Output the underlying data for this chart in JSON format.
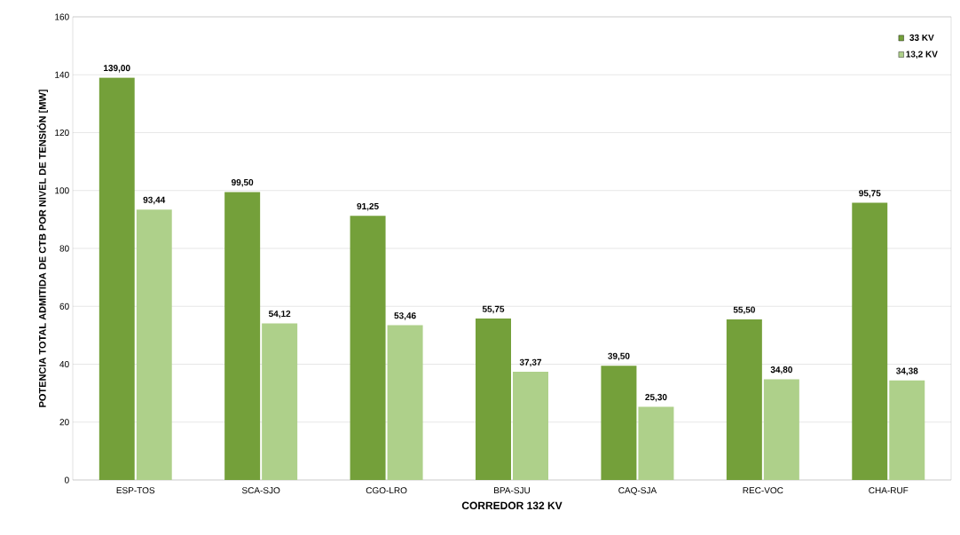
{
  "chart_data": {
    "type": "bar",
    "xlabel": "CORREDOR 132 KV",
    "ylabel": "POTENCIA TOTAL ADMITIDA DE CTB POR NIVEL DE TENSIÓN [MW]",
    "categories": [
      "ESP-TOS",
      "SCA-SJO",
      "CGO-LRO",
      "BPA-SJU",
      "CAQ-SJA",
      "REC-VOC",
      "CHA-RUF"
    ],
    "series": [
      {
        "name": "33 KV",
        "color": "#74a03a",
        "values": [
          139.0,
          99.5,
          91.25,
          55.75,
          39.5,
          55.5,
          95.75
        ],
        "value_labels": [
          "139,00",
          "99,50",
          "91,25",
          "55,75",
          "39,50",
          "55,50",
          "95,75"
        ]
      },
      {
        "name": "13,2 KV",
        "color": "#aed08a",
        "values": [
          93.44,
          54.12,
          53.46,
          37.37,
          25.3,
          34.8,
          34.38
        ],
        "value_labels": [
          "93,44",
          "54,12",
          "53,46",
          "37,37",
          "25,30",
          "34,80",
          "34,38"
        ]
      }
    ],
    "ylim": [
      0,
      160
    ],
    "yticks": [
      0,
      20,
      40,
      60,
      80,
      100,
      120,
      140,
      160
    ],
    "grid": "y",
    "legend": "top right"
  }
}
